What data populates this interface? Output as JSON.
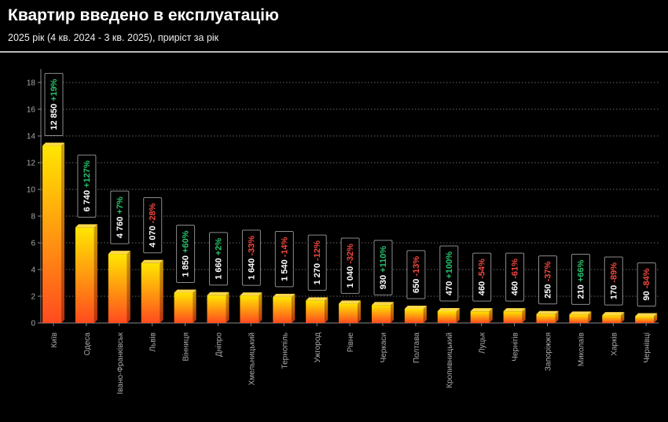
{
  "header": {
    "title": "Квартир введено в експлуатацію",
    "subtitle": "2025 рік (4 кв. 2024 - 3 кв. 2025), приріст за рік"
  },
  "chart_data": {
    "type": "bar",
    "title": "Квартир введено в експлуатацію",
    "subtitle": "2025 рік (4 кв. 2024 - 3 кв. 2025), приріст за рік",
    "ylabel": "",
    "xlabel": "",
    "ylim": [
      0,
      18
    ],
    "yticks": [
      0,
      2,
      4,
      6,
      8,
      10,
      12,
      14,
      16,
      18
    ],
    "y_unit_note": "",
    "grid": "horizontal dotted",
    "categories": [
      "Київ",
      "Одеса",
      "Івано-Франківськ",
      "Львів",
      "Вінниця",
      "Дніпро",
      "Хмельницький",
      "Тернопіль",
      "Ужгород",
      "Рівне",
      "Черкаси",
      "Полтава",
      "Кропивницький",
      "Луцьк",
      "Чернігів",
      "Запоріжжя",
      "Миколаїв",
      "Харків",
      "Чернівці"
    ],
    "values": [
      12850,
      6740,
      4760,
      4070,
      1850,
      1660,
      1640,
      1540,
      1270,
      1040,
      930,
      650,
      470,
      460,
      460,
      250,
      210,
      170,
      90
    ],
    "value_labels": [
      "12 850",
      "6 740",
      "4 760",
      "4 070",
      "1 850",
      "1 660",
      "1 640",
      "1 540",
      "1 270",
      "1 040",
      "930",
      "650",
      "470",
      "460",
      "460",
      "250",
      "210",
      "170",
      "90"
    ],
    "growth_labels": [
      "+19%",
      "+127%",
      "+7%",
      "-28%",
      "+60%",
      "+2%",
      "-33%",
      "-14%",
      "-12%",
      "-32%",
      "+110%",
      "-13%",
      "+100%",
      "-54%",
      "-61%",
      "-37%",
      "+66%",
      "-89%",
      "-84%"
    ],
    "colors": {
      "bar_top": "#ffe600",
      "bar_bottom": "#ff4b1f",
      "positive": "#27c46b",
      "negative": "#f0483e",
      "background": "#000000"
    }
  }
}
